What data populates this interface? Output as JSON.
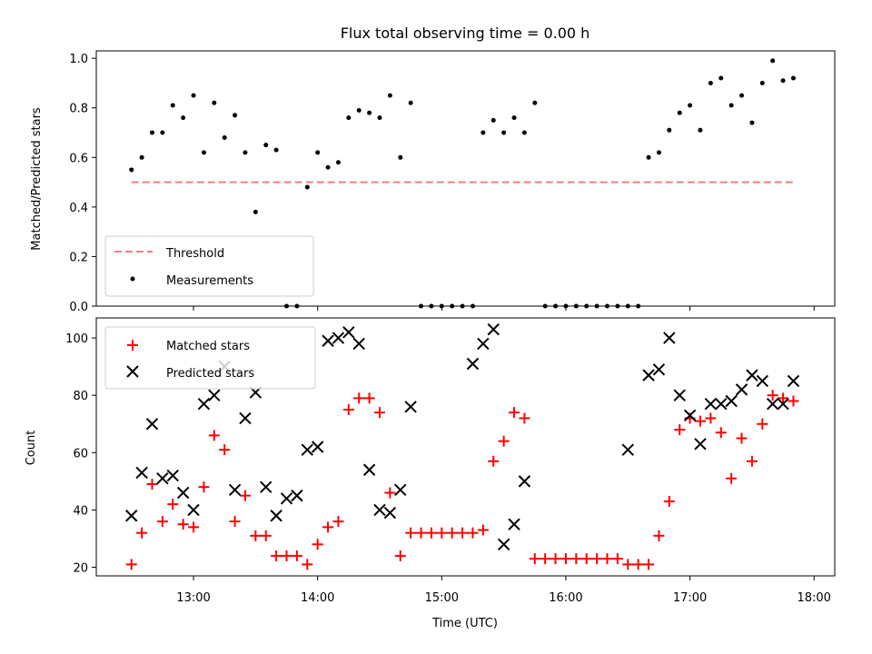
{
  "chart_data": [
    {
      "type": "scatter",
      "title": "Flux total observing time = 0.00 h",
      "xlabel": "",
      "ylabel": "Matched/Predicted stars",
      "ylim": [
        0,
        1.03
      ],
      "yticks": [
        "0.0",
        "0.2",
        "0.4",
        "0.6",
        "0.8",
        "1.0"
      ],
      "yticks_values": [
        0,
        0.2,
        0.4,
        0.6,
        0.8,
        1.0
      ],
      "legend": "lower-left",
      "grid": false,
      "threshold": {
        "name": "Threshold",
        "value": 0.5,
        "x_start": "12:30",
        "x_end": "17:50",
        "color": "#f08080"
      },
      "series": [
        {
          "name": "Measurements",
          "color": "#000000",
          "x": [
            "12:30",
            "12:35",
            "12:40",
            "12:45",
            "12:50",
            "12:55",
            "13:00",
            "13:05",
            "13:10",
            "13:15",
            "13:20",
            "13:25",
            "13:30",
            "13:35",
            "13:40",
            "13:45",
            "13:50",
            "13:55",
            "14:00",
            "14:05",
            "14:10",
            "14:15",
            "14:20",
            "14:25",
            "14:30",
            "14:35",
            "14:40",
            "14:45",
            "14:50",
            "14:55",
            "15:00",
            "15:05",
            "15:10",
            "15:15",
            "15:20",
            "15:25",
            "15:30",
            "15:35",
            "15:40",
            "15:45",
            "15:50",
            "15:55",
            "16:00",
            "16:05",
            "16:10",
            "16:15",
            "16:20",
            "16:25",
            "16:30",
            "16:35",
            "16:40",
            "16:45",
            "16:50",
            "16:55",
            "17:00",
            "17:05",
            "17:10",
            "17:15",
            "17:20",
            "17:25",
            "17:30",
            "17:35",
            "17:40",
            "17:45",
            "17:50"
          ],
          "y": [
            0.55,
            0.6,
            0.7,
            0.7,
            0.81,
            0.76,
            0.85,
            0.62,
            0.82,
            0.68,
            0.77,
            0.62,
            0.38,
            0.65,
            0.63,
            0.0,
            0.0,
            0.48,
            0.62,
            0.56,
            0.58,
            0.76,
            0.79,
            0.78,
            0.76,
            0.85,
            0.6,
            0.82,
            0.0,
            0.0,
            0.0,
            0.0,
            0.0,
            0.0,
            0.7,
            0.75,
            0.7,
            0.76,
            0.7,
            0.82,
            0.0,
            0.0,
            0.0,
            0.0,
            0.0,
            0.0,
            0.0,
            0.0,
            0.0,
            0.0,
            0.6,
            0.62,
            0.71,
            0.78,
            0.81,
            0.71,
            0.9,
            0.92,
            0.81,
            0.85,
            0.74,
            0.9,
            0.99,
            0.91,
            0.92
          ]
        }
      ]
    },
    {
      "type": "scatter",
      "title": "",
      "xlabel": "Time (UTC)",
      "ylabel": "Count",
      "ylim": [
        17,
        107
      ],
      "yticks": [
        "20",
        "40",
        "60",
        "80",
        "100"
      ],
      "yticks_values": [
        20,
        40,
        60,
        80,
        100
      ],
      "xlim": [
        "12:13",
        "18:10"
      ],
      "xticks": [
        "13:00",
        "14:00",
        "15:00",
        "16:00",
        "17:00",
        "18:00"
      ],
      "legend": "top-left",
      "grid": false,
      "series": [
        {
          "name": "Matched stars",
          "marker": "plus",
          "color": "#ff0000",
          "x": [
            "12:30",
            "12:35",
            "12:40",
            "12:45",
            "12:50",
            "12:55",
            "13:00",
            "13:05",
            "13:10",
            "13:15",
            "13:20",
            "13:25",
            "13:30",
            "13:35",
            "13:40",
            "13:45",
            "13:50",
            "13:55",
            "14:00",
            "14:05",
            "14:10",
            "14:15",
            "14:20",
            "14:25",
            "14:30",
            "14:35",
            "14:40",
            "14:45",
            "14:50",
            "14:55",
            "15:00",
            "15:05",
            "15:10",
            "15:15",
            "15:20",
            "15:25",
            "15:30",
            "15:35",
            "15:40",
            "15:45",
            "15:50",
            "15:55",
            "16:00",
            "16:05",
            "16:10",
            "16:15",
            "16:20",
            "16:25",
            "16:30",
            "16:35",
            "16:40",
            "16:45",
            "16:50",
            "16:55",
            "17:00",
            "17:05",
            "17:10",
            "17:15",
            "17:20",
            "17:25",
            "17:30",
            "17:35",
            "17:40",
            "17:45",
            "17:50"
          ],
          "y": [
            21,
            32,
            49,
            36,
            42,
            35,
            34,
            48,
            66,
            61,
            36,
            45,
            31,
            31,
            24,
            24,
            24,
            21,
            28,
            34,
            36,
            75,
            79,
            79,
            74,
            46,
            24,
            32,
            32,
            32,
            32,
            32,
            32,
            32,
            33,
            57,
            64,
            74,
            72,
            23,
            23,
            23,
            23,
            23,
            23,
            23,
            23,
            23,
            21,
            21,
            21,
            31,
            43,
            68,
            72,
            71,
            72,
            67,
            51,
            65,
            57,
            70,
            80,
            79,
            78
          ]
        },
        {
          "name": "Predicted stars",
          "marker": "x",
          "color": "#000000",
          "x": [
            "12:30",
            "12:35",
            "12:40",
            "12:45",
            "12:50",
            "12:55",
            "13:00",
            "13:05",
            "13:10",
            "13:15",
            "13:20",
            "13:25",
            "13:30",
            "13:35",
            "13:40",
            "13:45",
            "13:50",
            "13:55",
            "14:00",
            "14:05",
            "14:10",
            "14:15",
            "14:20",
            "14:25",
            "14:30",
            "14:35",
            "14:40",
            "14:45",
            "15:15",
            "15:20",
            "15:25",
            "15:30",
            "15:35",
            "15:40",
            "16:30",
            "16:40",
            "16:45",
            "16:50",
            "16:55",
            "17:00",
            "17:05",
            "17:10",
            "17:15",
            "17:20",
            "17:25",
            "17:30",
            "17:35",
            "17:40",
            "17:45",
            "17:50"
          ],
          "y": [
            38,
            53,
            70,
            51,
            52,
            46,
            40,
            77,
            80,
            90,
            47,
            72,
            81,
            48,
            38,
            44,
            45,
            61,
            62,
            99,
            100,
            102,
            98,
            54,
            40,
            39,
            47,
            76,
            91,
            98,
            103,
            28,
            35,
            50,
            61,
            87,
            89,
            100,
            80,
            73,
            63,
            77,
            77,
            78,
            82,
            87,
            85,
            77,
            77,
            85
          ]
        }
      ]
    }
  ]
}
